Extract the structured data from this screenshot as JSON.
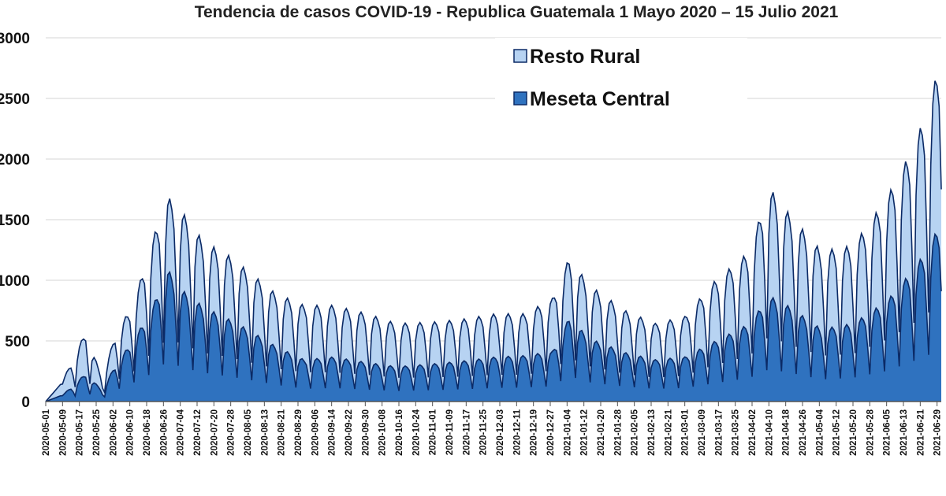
{
  "chart_data": {
    "type": "area",
    "stacked": true,
    "title": "Tendencia de casos COVID-19 - Republica Guatemala 1 Mayo 2020 – 15 Julio 2021",
    "x_start": "2020-05-01",
    "x_end": "2021-07-01",
    "x_tick_labels": [
      "2020-05-01",
      "2020-05-09",
      "2020-05-17",
      "2020-05-25",
      "2020-06-02",
      "2020-06-10",
      "2020-06-18",
      "2020-06-26",
      "2020-07-04",
      "2020-07-12",
      "2020-07-20",
      "2020-07-28",
      "2020-08-05",
      "2020-08-13",
      "2020-08-21",
      "2020-08-29",
      "2020-09-06",
      "2020-09-14",
      "2020-09-22",
      "2020-09-30",
      "2020-10-08",
      "2020-10-16",
      "2020-10-24",
      "2020-11-01",
      "2020-11-09",
      "2020-11-17",
      "2020-11-25",
      "2020-12-03",
      "2020-12-11",
      "2020-12-19",
      "2020-12-27",
      "2021-01-04",
      "2021-01-12",
      "2021-01-20",
      "2021-01-28",
      "2021-02-05",
      "2021-02-13",
      "2021-02-21",
      "2021-03-01",
      "2021-03-09",
      "2021-03-17",
      "2021-03-25",
      "2021-04-02",
      "2021-04-10",
      "2021-04-18",
      "2021-04-26",
      "2021-05-04",
      "2021-05-12",
      "2021-05-20",
      "2021-05-28",
      "2021-06-05",
      "2021-06-13",
      "2021-06-21",
      "2021-06-29"
    ],
    "y_tick_labels": [
      "0",
      "500",
      "1000",
      "1500",
      "2000",
      "2500",
      "3000"
    ],
    "y_tick_values": [
      0,
      500,
      1000,
      1500,
      2000,
      2500,
      3000
    ],
    "ylim": [
      0,
      3000
    ],
    "grid": "horizontal",
    "legend_position": "top-right",
    "colors": {
      "Resto Rural": "#b7d3f2",
      "Meseta Central": "#2f72bf",
      "line": "#0b2a66"
    },
    "series": [
      {
        "name": "Resto Rural",
        "points": [
          [
            "2020-05-01",
            0
          ],
          [
            "2020-05-10",
            120
          ],
          [
            "2020-05-20",
            300
          ],
          [
            "2020-05-28",
            80
          ],
          [
            "2020-06-03",
            220
          ],
          [
            "2020-06-12",
            260
          ],
          [
            "2020-06-20",
            480
          ],
          [
            "2020-06-28",
            520
          ],
          [
            "2020-07-05",
            560
          ],
          [
            "2020-07-15",
            470
          ],
          [
            "2020-07-26",
            460
          ],
          [
            "2020-08-05",
            420
          ],
          [
            "2020-08-18",
            380
          ],
          [
            "2020-09-01",
            390
          ],
          [
            "2020-09-15",
            370
          ],
          [
            "2020-10-01",
            350
          ],
          [
            "2020-10-15",
            310
          ],
          [
            "2020-11-01",
            300
          ],
          [
            "2020-11-15",
            300
          ],
          [
            "2020-12-01",
            310
          ],
          [
            "2020-12-15",
            300
          ],
          [
            "2020-12-28",
            380
          ],
          [
            "2021-01-05",
            430
          ],
          [
            "2021-01-15",
            380
          ],
          [
            "2021-02-01",
            300
          ],
          [
            "2021-02-15",
            260
          ],
          [
            "2021-03-01",
            290
          ],
          [
            "2021-03-15",
            430
          ],
          [
            "2021-04-01",
            520
          ],
          [
            "2021-04-10",
            780
          ],
          [
            "2021-04-20",
            660
          ],
          [
            "2021-05-05",
            560
          ],
          [
            "2021-05-20",
            560
          ],
          [
            "2021-06-05",
            740
          ],
          [
            "2021-06-15",
            850
          ],
          [
            "2021-06-25",
            1000
          ],
          [
            "2021-07-01",
            1200
          ]
        ]
      },
      {
        "name": "Meseta Central",
        "points": [
          [
            "2020-05-01",
            0
          ],
          [
            "2020-05-10",
            60
          ],
          [
            "2020-05-20",
            200
          ],
          [
            "2020-05-28",
            80
          ],
          [
            "2020-06-03",
            260
          ],
          [
            "2020-06-12",
            450
          ],
          [
            "2020-06-20",
            650
          ],
          [
            "2020-06-28",
            950
          ],
          [
            "2020-07-05",
            800
          ],
          [
            "2020-07-15",
            680
          ],
          [
            "2020-07-26",
            600
          ],
          [
            "2020-08-05",
            520
          ],
          [
            "2020-08-18",
            400
          ],
          [
            "2020-09-01",
            300
          ],
          [
            "2020-09-15",
            320
          ],
          [
            "2020-10-01",
            280
          ],
          [
            "2020-10-15",
            250
          ],
          [
            "2020-11-01",
            270
          ],
          [
            "2020-11-15",
            290
          ],
          [
            "2020-12-01",
            320
          ],
          [
            "2020-12-15",
            330
          ],
          [
            "2020-12-28",
            360
          ],
          [
            "2021-01-05",
            600
          ],
          [
            "2021-01-15",
            450
          ],
          [
            "2021-02-01",
            350
          ],
          [
            "2021-02-15",
            300
          ],
          [
            "2021-03-01",
            320
          ],
          [
            "2021-03-15",
            430
          ],
          [
            "2021-04-01",
            560
          ],
          [
            "2021-04-10",
            760
          ],
          [
            "2021-04-20",
            680
          ],
          [
            "2021-05-05",
            520
          ],
          [
            "2021-05-20",
            560
          ],
          [
            "2021-06-05",
            720
          ],
          [
            "2021-06-15",
            900
          ],
          [
            "2021-06-25",
            1100
          ],
          [
            "2021-07-01",
            1300
          ]
        ]
      }
    ]
  }
}
